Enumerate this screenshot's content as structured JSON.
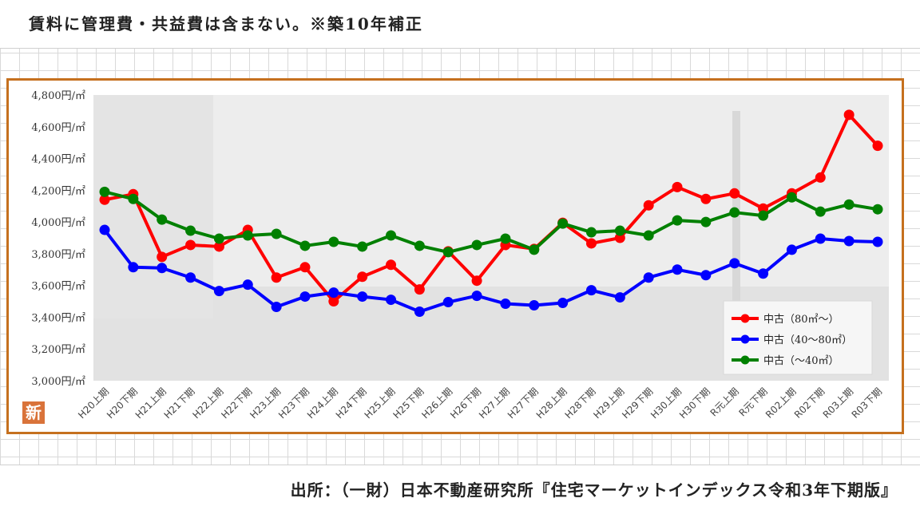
{
  "header": {
    "note": "賃料に管理費・共益費は含まない。※築10年補正"
  },
  "footer": {
    "source": "出所：（一財）日本不動産研究所『住宅マーケットインデックス令和3年下期版』"
  },
  "badge": {
    "label": "新"
  },
  "chart_data": {
    "type": "line",
    "title": "",
    "xlabel": "",
    "ylabel": "",
    "ylim": [
      3000,
      4800
    ],
    "yticks": [
      3000,
      3200,
      3400,
      3600,
      3800,
      4000,
      4200,
      4400,
      4600,
      4800
    ],
    "ytick_labels": [
      "3,000円/㎡",
      "3,200円/㎡",
      "3,400円/㎡",
      "3,600円/㎡",
      "3,800円/㎡",
      "4,000円/㎡",
      "4,200円/㎡",
      "4,400円/㎡",
      "4,600円/㎡",
      "4,800円/㎡"
    ],
    "grid": false,
    "legend_position": "bottom-right",
    "categories": [
      "H20上期",
      "H20下期",
      "H21上期",
      "H21下期",
      "H22上期",
      "H22下期",
      "H23上期",
      "H23下期",
      "H24上期",
      "H24下期",
      "H25上期",
      "H25下期",
      "H26上期",
      "H26下期",
      "H27上期",
      "H27下期",
      "H28上期",
      "H28下期",
      "H29上期",
      "H29下期",
      "H30上期",
      "H30下期",
      "R元上期",
      "R元下期",
      "R02上期",
      "R02下期",
      "R03上期",
      "R03下期"
    ],
    "series": [
      {
        "name": "中古（80㎡～）",
        "color": "#ff0000",
        "values": [
          4140,
          4175,
          3780,
          3855,
          3845,
          3950,
          3650,
          3715,
          3500,
          3655,
          3730,
          3575,
          3815,
          3630,
          3855,
          3830,
          3995,
          3865,
          3900,
          4105,
          4220,
          4145,
          4180,
          4085,
          4180,
          4280,
          4675,
          4480
        ]
      },
      {
        "name": "中古（40～80㎡）",
        "color": "#0000ff",
        "values": [
          3950,
          3715,
          3710,
          3650,
          3565,
          3605,
          3465,
          3530,
          3555,
          3530,
          3510,
          3435,
          3495,
          3535,
          3485,
          3475,
          3490,
          3570,
          3525,
          3650,
          3700,
          3665,
          3740,
          3675,
          3825,
          3895,
          3880,
          3875
        ]
      },
      {
        "name": "中古（～40㎡）",
        "color": "#008000",
        "values": [
          4190,
          4145,
          4015,
          3945,
          3895,
          3915,
          3925,
          3850,
          3875,
          3845,
          3915,
          3850,
          3810,
          3855,
          3895,
          3825,
          3990,
          3935,
          3945,
          3915,
          4010,
          4000,
          4060,
          4040,
          4155,
          4065,
          4110,
          4080
        ]
      }
    ]
  }
}
